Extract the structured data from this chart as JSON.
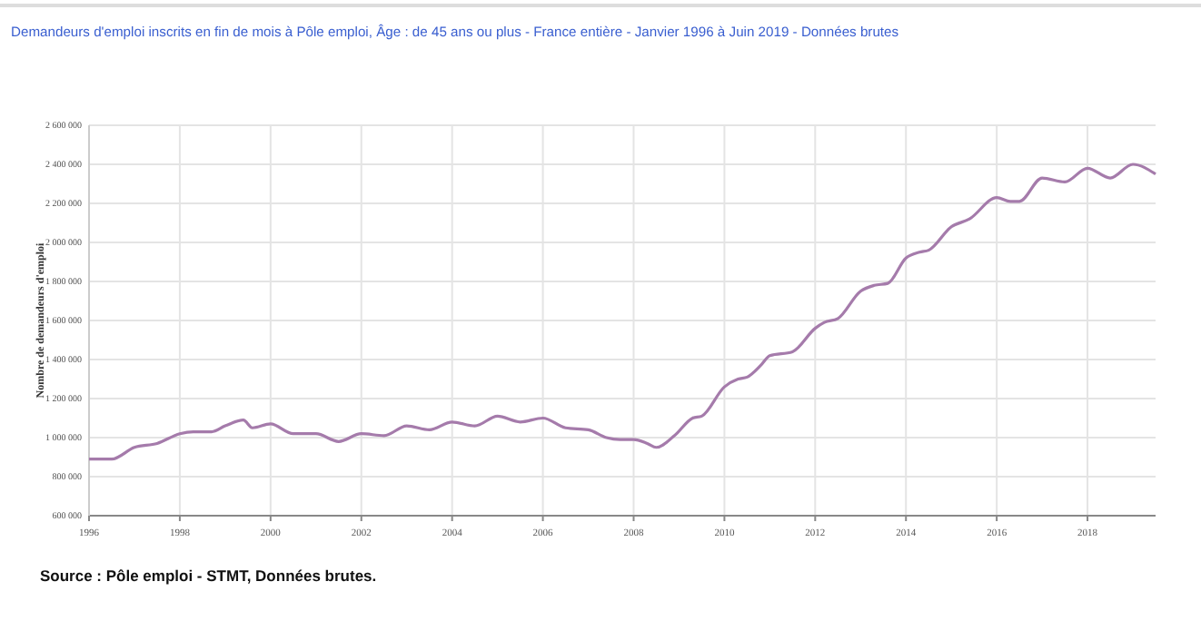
{
  "chart_data": {
    "type": "line",
    "title": "Demandeurs d'emploi inscrits en fin de mois à Pôle emploi, Âge : de 45 ans ou plus - France entière - Janvier 1996 à Juin 2019 - Données brutes",
    "ylabel": "Nombre de demandeurs d'emploi",
    "annotations": [
      "Source : Pôle emploi - STMT, Données brutes."
    ],
    "x": [
      1996,
      1996.5,
      1997,
      1997.5,
      1998,
      1998.3,
      1998.7,
      1999,
      1999.4,
      1999.6,
      2000,
      2000.5,
      2001,
      2001.5,
      2002,
      2002.5,
      2003,
      2003.5,
      2004,
      2004.5,
      2005,
      2005.5,
      2006,
      2006.5,
      2007,
      2007.4,
      2007.7,
      2008,
      2008.3,
      2008.5,
      2008.9,
      2009.3,
      2009.5,
      2010,
      2010.3,
      2010.5,
      2010.8,
      2011,
      2011.5,
      2012,
      2012.2,
      2012.5,
      2013,
      2013.3,
      2013.6,
      2014,
      2014.3,
      2014.5,
      2015,
      2015.4,
      2016,
      2016.3,
      2016.5,
      2017,
      2017.5,
      2018,
      2018.5,
      2019,
      2019.5
    ],
    "series": [
      {
        "color": "#a57bab",
        "values": [
          890000,
          890000,
          950000,
          970000,
          1020000,
          1030000,
          1030000,
          1060000,
          1090000,
          1050000,
          1070000,
          1020000,
          1020000,
          980000,
          1020000,
          1010000,
          1060000,
          1040000,
          1080000,
          1060000,
          1110000,
          1080000,
          1100000,
          1050000,
          1040000,
          1000000,
          990000,
          990000,
          970000,
          950000,
          1010000,
          1100000,
          1110000,
          1260000,
          1300000,
          1310000,
          1370000,
          1420000,
          1440000,
          1560000,
          1590000,
          1610000,
          1750000,
          1780000,
          1790000,
          1920000,
          1950000,
          1960000,
          2080000,
          2120000,
          2230000,
          2210000,
          2210000,
          2330000,
          2310000,
          2380000,
          2330000,
          2400000,
          2350000
        ]
      }
    ],
    "xlim": [
      1996,
      2019.5
    ],
    "xticks": [
      1996,
      1998,
      2000,
      2002,
      2004,
      2006,
      2008,
      2010,
      2012,
      2014,
      2016,
      2018
    ],
    "ylim": [
      600000,
      2600000
    ],
    "yticks": [
      {
        "value": 600000,
        "label": "600 000"
      },
      {
        "value": 800000,
        "label": "800 000"
      },
      {
        "value": 1000000,
        "label": "1 000 000"
      },
      {
        "value": 1200000,
        "label": "1 200 000"
      },
      {
        "value": 1400000,
        "label": "1 400 000"
      },
      {
        "value": 1600000,
        "label": "1 600 000"
      },
      {
        "value": 1800000,
        "label": "1 800 000"
      },
      {
        "value": 2000000,
        "label": "2 000 000"
      },
      {
        "value": 2200000,
        "label": "2 200 000"
      },
      {
        "value": 2400000,
        "label": "2 400 000"
      },
      {
        "value": 2600000,
        "label": "2 600 000"
      }
    ],
    "grid": true,
    "marker": "none",
    "line_style": "solid"
  }
}
